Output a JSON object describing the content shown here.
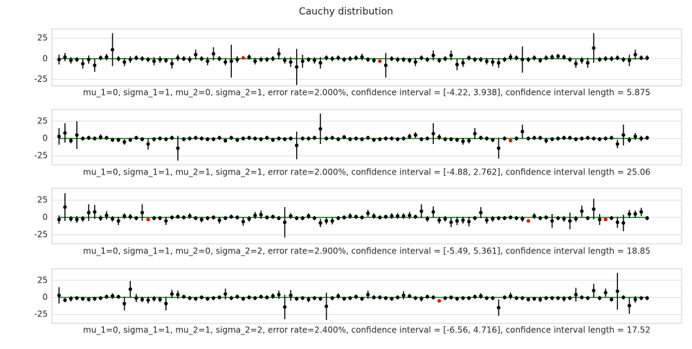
{
  "figure_title": "Cauchy distribution",
  "chart_data": [
    {
      "type": "errorbar",
      "xlabel": "mu_1=0, sigma_1=1, mu_2=0, sigma_2=1, error rate=2.000%, confidence interval = [-4.22, 3.938], confidence interval length = 5.875",
      "xlim": [
        -1.2,
        104.8
      ],
      "ylim": [
        -33,
        36
      ],
      "yticks": [
        -25,
        0,
        25
      ],
      "grid": true,
      "hline": {
        "y": 0,
        "color": "#008000"
      },
      "series": [
        {
          "color": "#000000",
          "values": [
            -1,
            2,
            -2,
            -1,
            -6,
            -1,
            -8,
            1,
            2,
            11,
            0,
            -4,
            -1,
            1,
            0,
            -1,
            -3,
            -1,
            -2,
            -6,
            1,
            0,
            -1,
            5,
            0,
            -3,
            6,
            0,
            -4,
            -3,
            -1,
            null,
            2,
            -3,
            -1,
            -1,
            0,
            6,
            -2,
            -4,
            -10,
            -3,
            -1,
            -2,
            -5,
            1,
            0,
            1,
            -1,
            0,
            1,
            2,
            -1,
            -2,
            null,
            -8,
            0,
            -1,
            -1,
            -2,
            -4,
            1,
            -1,
            4,
            -2,
            0,
            4,
            -7,
            -5,
            1,
            -1,
            -1,
            -3,
            -4,
            -5,
            -1,
            2,
            1,
            -1,
            -1,
            1,
            -2,
            1,
            2,
            3,
            2,
            -1,
            -6,
            -2,
            -5,
            13,
            -1,
            0,
            0,
            1,
            -1,
            -2,
            5,
            1,
            1
          ],
          "errors": [
            6,
            5,
            4,
            3,
            6,
            5,
            8,
            3,
            4,
            20,
            3,
            5,
            4,
            3,
            3,
            3,
            5,
            4,
            3,
            6,
            4,
            3,
            4,
            6,
            3,
            5,
            8,
            3,
            4,
            20,
            4,
            null,
            3,
            4,
            3,
            3,
            3,
            7,
            4,
            6,
            22,
            8,
            3,
            4,
            7,
            3,
            3,
            3,
            3,
            3,
            3,
            4,
            3,
            3,
            null,
            15,
            3,
            3,
            3,
            3,
            5,
            3,
            3,
            6,
            3,
            3,
            6,
            7,
            5,
            3,
            3,
            3,
            4,
            5,
            6,
            3,
            4,
            3,
            16,
            3,
            3,
            3,
            3,
            3,
            3,
            3,
            3,
            5,
            4,
            6,
            18,
            3,
            3,
            3,
            3,
            3,
            7,
            6,
            3,
            3
          ]
        },
        {
          "color": "#ff0000",
          "x": [
            31,
            54
          ],
          "values": [
            1,
            -3
          ]
        }
      ]
    },
    {
      "type": "errorbar",
      "xlabel": "mu_1=0, sigma_1=1, mu_2=1, sigma_2=1, error rate=2.000%, confidence interval = [-4.88, 2.762], confidence interval length = 25.06",
      "xlim": [
        -1.2,
        104.8
      ],
      "ylim": [
        -38,
        42
      ],
      "yticks": [
        -25,
        0,
        25
      ],
      "grid": true,
      "hline": {
        "y": 0,
        "color": "#008000"
      },
      "series": [
        {
          "color": "#000000",
          "values": [
            3,
            8,
            -3,
            5,
            0,
            1,
            0,
            2,
            1,
            -2,
            -2,
            -5,
            -2,
            1,
            -1,
            -8,
            -1,
            0,
            -1,
            1,
            -14,
            -1,
            0,
            1,
            0,
            -1,
            -1,
            1,
            -3,
            1,
            -2,
            0,
            1,
            0,
            -1,
            1,
            -2,
            0,
            -1,
            0,
            -10,
            0,
            0,
            1,
            14,
            0,
            1,
            -1,
            2,
            -1,
            0,
            -1,
            1,
            -2,
            -1,
            0,
            0,
            -1,
            0,
            3,
            5,
            -1,
            0,
            7,
            2,
            -1,
            -1,
            -2,
            -4,
            -3,
            7,
            1,
            0,
            -2,
            -14,
            0,
            null,
            0,
            10,
            0,
            1,
            1,
            -3,
            -1,
            0,
            1,
            1,
            -1,
            0,
            1,
            0,
            -1,
            0,
            1,
            -8,
            5,
            -2,
            3,
            0,
            1
          ],
          "errors": [
            12,
            14,
            4,
            20,
            3,
            3,
            3,
            4,
            3,
            3,
            3,
            4,
            3,
            3,
            3,
            8,
            3,
            3,
            3,
            3,
            18,
            3,
            3,
            3,
            3,
            3,
            3,
            3,
            3,
            3,
            3,
            3,
            3,
            3,
            3,
            3,
            3,
            3,
            3,
            3,
            20,
            3,
            3,
            3,
            22,
            3,
            3,
            3,
            3,
            3,
            3,
            3,
            3,
            3,
            3,
            3,
            3,
            3,
            3,
            4,
            4,
            3,
            3,
            15,
            4,
            3,
            3,
            3,
            5,
            4,
            8,
            3,
            3,
            3,
            15,
            3,
            null,
            3,
            10,
            3,
            3,
            3,
            4,
            3,
            3,
            3,
            3,
            3,
            3,
            3,
            3,
            3,
            3,
            3,
            6,
            15,
            4,
            5,
            4,
            3
          ]
        },
        {
          "color": "#ff0000",
          "x": [
            76
          ],
          "values": [
            -3
          ]
        }
      ]
    },
    {
      "type": "errorbar",
      "xlabel": "mu_1=0, sigma_1=1, mu_2=0, sigma_2=2, error rate=2.900%, confidence interval = [-5.49, 5.361], confidence interval length = 18.85",
      "xlim": [
        -1.2,
        104.8
      ],
      "ylim": [
        -38,
        42
      ],
      "yticks": [
        -25,
        0,
        25
      ],
      "grid": true,
      "hline": {
        "y": 0,
        "color": "#008000"
      },
      "series": [
        {
          "color": "#000000",
          "values": [
            -3,
            15,
            -2,
            -3,
            -2,
            7,
            8,
            -1,
            3,
            -2,
            -5,
            2,
            1,
            -1,
            7,
            null,
            -1,
            -1,
            -5,
            0,
            1,
            0,
            2,
            -1,
            -3,
            -1,
            0,
            -4,
            -1,
            1,
            0,
            -6,
            -2,
            3,
            4,
            0,
            1,
            -1,
            -7,
            2,
            -1,
            -1,
            2,
            -1,
            -8,
            -5,
            -5,
            -1,
            0,
            2,
            1,
            0,
            6,
            2,
            0,
            1,
            2,
            2,
            2,
            3,
            1,
            9,
            -2,
            8,
            -4,
            -2,
            -7,
            -5,
            -4,
            -6,
            -1,
            7,
            -4,
            -2,
            -1,
            -1,
            0,
            -1,
            -2,
            null,
            2,
            -1,
            0,
            -5,
            -1,
            -2,
            -5,
            -2,
            9,
            -1,
            12,
            -3,
            null,
            -1,
            -7,
            -8,
            5,
            5,
            8,
            -1
          ],
          "errors": [
            6,
            20,
            4,
            5,
            4,
            12,
            10,
            4,
            6,
            4,
            6,
            4,
            4,
            3,
            12,
            null,
            3,
            3,
            6,
            3,
            3,
            3,
            4,
            3,
            4,
            3,
            3,
            5,
            3,
            3,
            3,
            6,
            4,
            5,
            6,
            3,
            3,
            3,
            22,
            4,
            3,
            3,
            4,
            3,
            6,
            5,
            5,
            3,
            3,
            4,
            3,
            3,
            5,
            4,
            3,
            3,
            4,
            4,
            4,
            5,
            3,
            10,
            4,
            8,
            5,
            4,
            7,
            6,
            5,
            7,
            3,
            8,
            5,
            4,
            3,
            3,
            3,
            3,
            4,
            null,
            4,
            3,
            3,
            10,
            3,
            4,
            12,
            4,
            8,
            3,
            15,
            8,
            null,
            3,
            8,
            12,
            6,
            5,
            6,
            3
          ]
        },
        {
          "color": "#ff0000",
          "x": [
            15,
            79,
            92
          ],
          "values": [
            -3,
            -5,
            -3
          ]
        }
      ]
    },
    {
      "type": "errorbar",
      "xlabel": "mu_1=0, sigma_1=1, mu_2=1, sigma_2=2, error rate=2.400%, confidence interval = [-6.56, 4.716], confidence interval length = 17.52",
      "xlim": [
        -1.2,
        104.8
      ],
      "ylim": [
        -38,
        42
      ],
      "yticks": [
        -25,
        0,
        25
      ],
      "grid": true,
      "hline": {
        "y": 0,
        "color": "#008000"
      },
      "series": [
        {
          "color": "#000000",
          "values": [
            3,
            -4,
            -2,
            -1,
            -2,
            -3,
            -2,
            -1,
            1,
            2,
            1,
            -9,
            12,
            -1,
            -3,
            -4,
            -2,
            -3,
            -9,
            5,
            4,
            1,
            -1,
            -2,
            0,
            -2,
            -1,
            0,
            5,
            -1,
            1,
            -2,
            0,
            -1,
            1,
            0,
            2,
            4,
            -14,
            3,
            -2,
            -1,
            -3,
            -1,
            -2,
            -13,
            -1,
            2,
            -2,
            -1,
            1,
            -2,
            4,
            0,
            0,
            -1,
            -2,
            0,
            3,
            2,
            -1,
            -2,
            1,
            0,
            null,
            -1,
            0,
            -2,
            -1,
            -1,
            1,
            2,
            -1,
            -1,
            -15,
            0,
            2,
            -1,
            -1,
            -3,
            -2,
            -3,
            -1,
            -1,
            -1,
            -2,
            -1,
            4,
            0,
            -1,
            10,
            -1,
            7,
            -3,
            9,
            0,
            -12,
            -3,
            -1,
            -1
          ],
          "errors": [
            12,
            3,
            4,
            3,
            3,
            3,
            3,
            3,
            3,
            4,
            3,
            10,
            12,
            6,
            4,
            5,
            4,
            4,
            10,
            6,
            6,
            3,
            3,
            3,
            3,
            3,
            3,
            3,
            8,
            3,
            3,
            3,
            3,
            3,
            3,
            3,
            4,
            6,
            18,
            8,
            3,
            3,
            4,
            3,
            3,
            20,
            3,
            4,
            3,
            3,
            3,
            3,
            6,
            3,
            3,
            3,
            3,
            3,
            6,
            3,
            3,
            4,
            3,
            3,
            null,
            3,
            3,
            3,
            3,
            3,
            3,
            4,
            3,
            3,
            12,
            3,
            5,
            3,
            3,
            3,
            3,
            4,
            3,
            3,
            3,
            4,
            3,
            10,
            3,
            3,
            10,
            3,
            6,
            3,
            27,
            3,
            12,
            5,
            3,
            3
          ]
        },
        {
          "color": "#ff0000",
          "x": [
            64
          ],
          "values": [
            -5
          ]
        }
      ]
    }
  ]
}
